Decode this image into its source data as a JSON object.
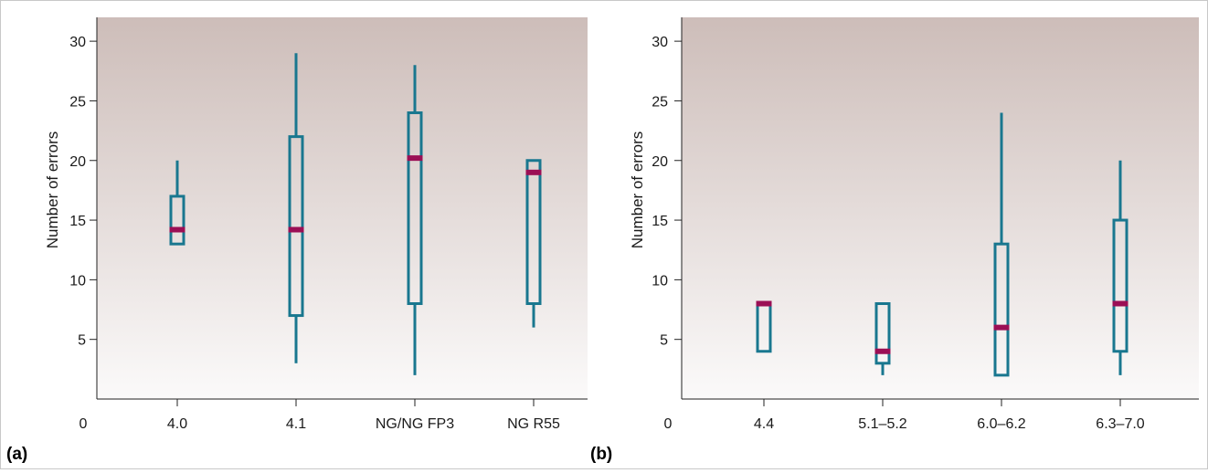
{
  "chart_data": [
    {
      "type": "boxplot",
      "panel_label": "(a)",
      "ylabel": "Number of errors",
      "origin_label": "0",
      "ylim": [
        0,
        32
      ],
      "yticks": [
        5,
        10,
        15,
        20,
        25,
        30
      ],
      "ytick_labels": [
        "5",
        "10",
        "15",
        "20",
        "25",
        "30"
      ],
      "categories": [
        "4.0",
        "4.1",
        "NG/NG FP3",
        "NG R55"
      ],
      "boxes": [
        {
          "whisker_low": 13,
          "q1": 13,
          "median": 14.2,
          "q3": 17,
          "whisker_high": 20
        },
        {
          "whisker_low": 3,
          "q1": 7,
          "median": 14.2,
          "q3": 22,
          "whisker_high": 29
        },
        {
          "whisker_low": 2,
          "q1": 8,
          "median": 20.2,
          "q3": 24,
          "whisker_high": 28
        },
        {
          "whisker_low": 6,
          "q1": 8,
          "median": 19,
          "q3": 20,
          "whisker_high": 20
        }
      ],
      "grid": false,
      "legend": "none"
    },
    {
      "type": "boxplot",
      "panel_label": "(b)",
      "ylabel": "Number of errors",
      "origin_label": "0",
      "ylim": [
        0,
        32
      ],
      "yticks": [
        5,
        10,
        15,
        20,
        25,
        30
      ],
      "ytick_labels": [
        "5",
        "10",
        "15",
        "20",
        "25",
        "30"
      ],
      "categories": [
        "4.4",
        "5.1–5.2",
        "6.0–6.2",
        "6.3–7.0"
      ],
      "boxes": [
        {
          "whisker_low": 4,
          "q1": 4,
          "median": 8,
          "q3": 8,
          "whisker_high": 8
        },
        {
          "whisker_low": 2,
          "q1": 3,
          "median": 4,
          "q3": 8,
          "whisker_high": 8
        },
        {
          "whisker_low": 2,
          "q1": 2,
          "median": 6,
          "q3": 13,
          "whisker_high": 24
        },
        {
          "whisker_low": 2,
          "q1": 4,
          "median": 8,
          "q3": 15,
          "whisker_high": 20
        }
      ],
      "grid": false,
      "legend": "none"
    }
  ],
  "colors": {
    "box": "#19778f",
    "median": "#9b0f55",
    "plot_bg_top": "#cdbdb9",
    "plot_bg_bottom": "#fbfafa",
    "axis": "#222222"
  }
}
